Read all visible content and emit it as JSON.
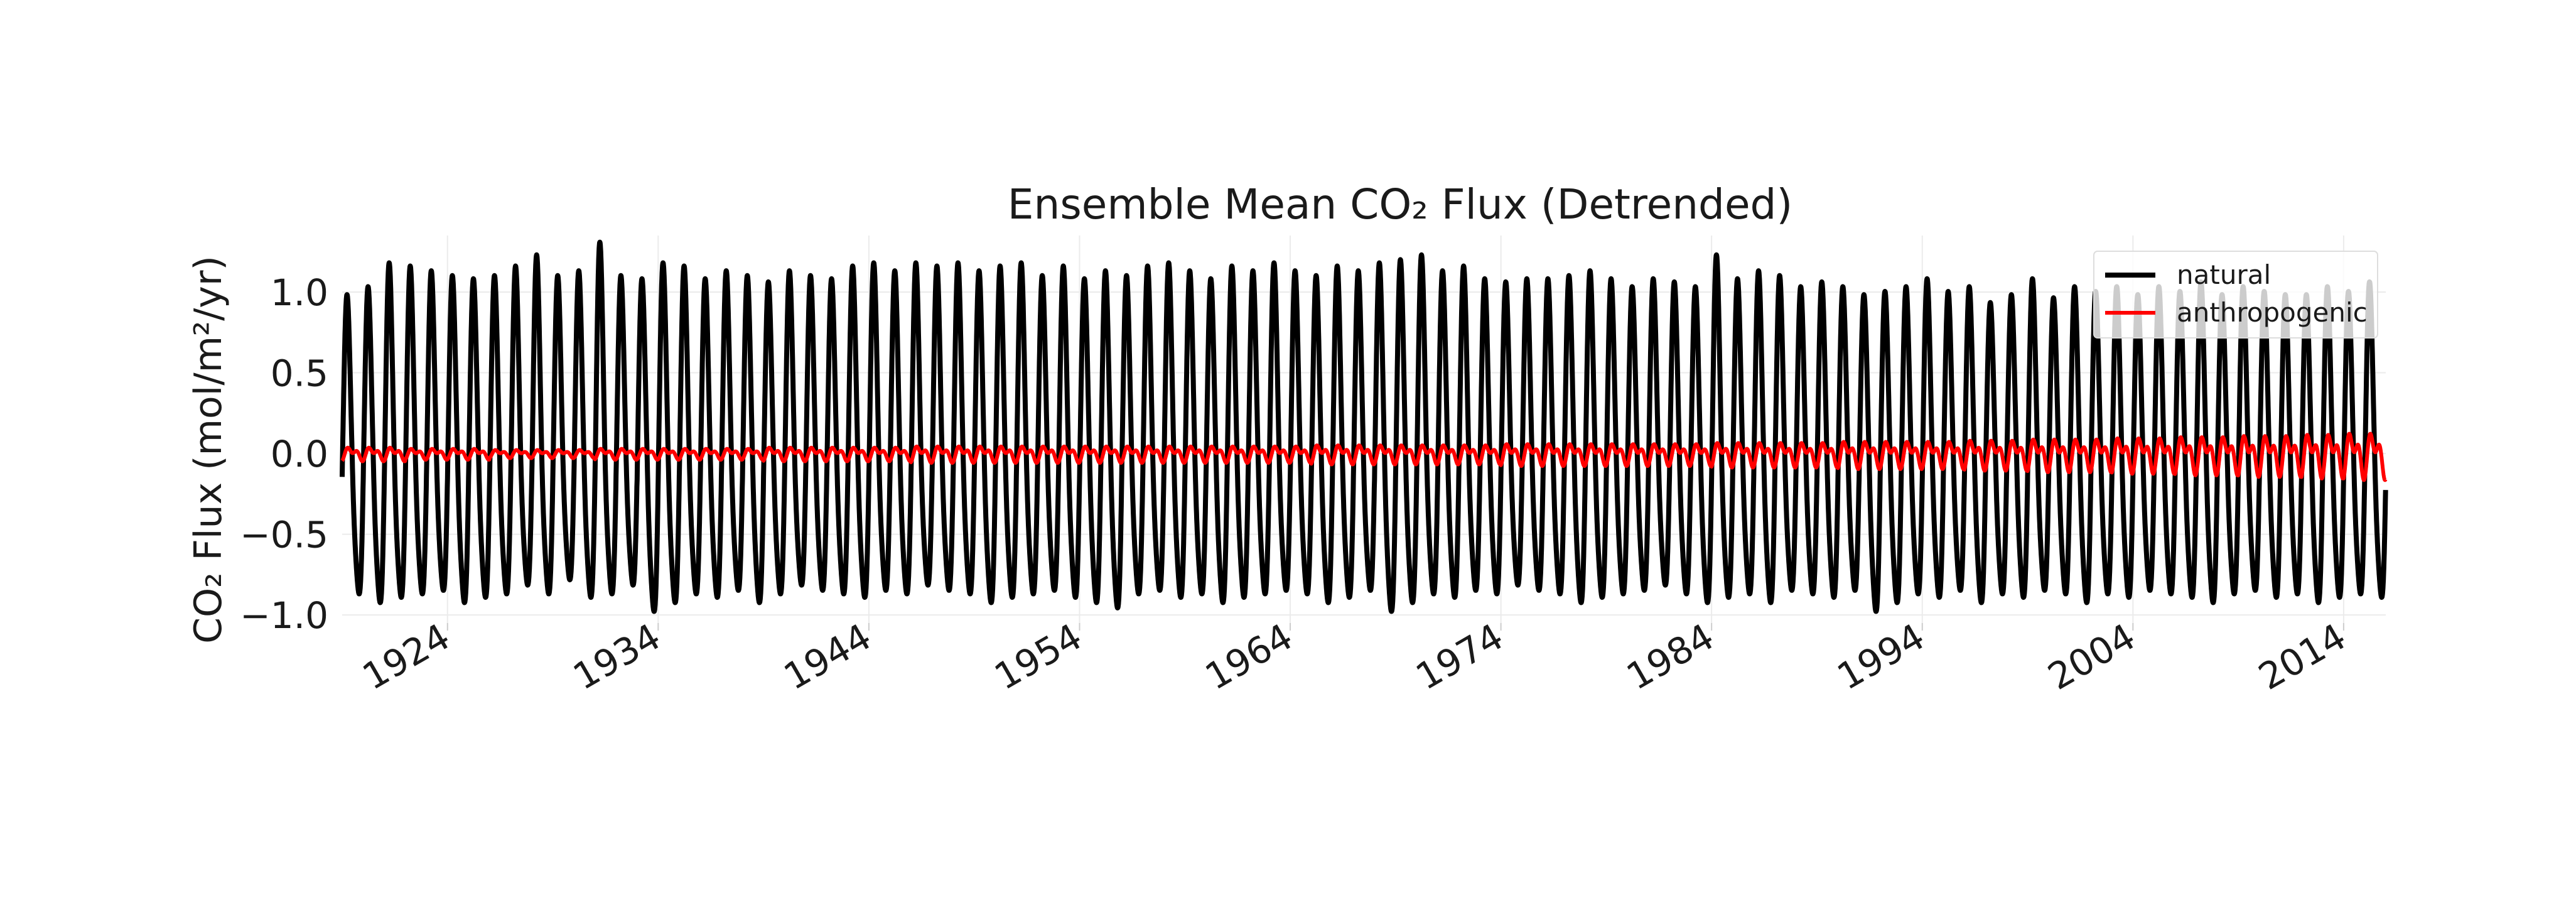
{
  "chart_data": {
    "type": "line",
    "title": "Ensemble Mean CO₂ Flux (Detrended)",
    "ylabel": "CO₂ Flux (mol/m²/yr)",
    "xlabel": "",
    "x_start": "1919-01",
    "x_end": "2015-12",
    "xlim": [
      "1919-01",
      "2015-12"
    ],
    "ylim": [
      -1.05,
      1.35
    ],
    "grid": true,
    "legend_position": "top-right",
    "x_ticks": [
      "1924",
      "1934",
      "1944",
      "1954",
      "1964",
      "1974",
      "1984",
      "1994",
      "2004",
      "2014"
    ],
    "y_ticks": [
      "1.0",
      "0.5",
      "0.0",
      "−0.5",
      "−1.0"
    ],
    "y_tick_values": [
      1.0,
      0.5,
      0.0,
      -0.5,
      -1.0
    ],
    "series": [
      {
        "name": "natural",
        "color": "#000000",
        "representation": "monthly seasonal cycle; yearly peak and trough values",
        "annual_max": [
          1.0,
          1.05,
          1.2,
          1.18,
          1.15,
          1.12,
          1.1,
          1.12,
          1.18,
          1.25,
          1.12,
          1.15,
          1.33,
          1.12,
          1.1,
          1.2,
          1.18,
          1.1,
          1.15,
          1.12,
          1.08,
          1.15,
          1.12,
          1.1,
          1.18,
          1.2,
          1.15,
          1.2,
          1.18,
          1.2,
          1.15,
          1.18,
          1.2,
          1.12,
          1.18,
          1.1,
          1.15,
          1.12,
          1.18,
          1.2,
          1.15,
          1.1,
          1.18,
          1.15,
          1.2,
          1.15,
          1.12,
          1.18,
          1.15,
          1.2,
          1.22,
          1.25,
          1.15,
          1.18,
          1.1,
          1.08,
          1.1,
          1.1,
          1.12,
          1.15,
          1.1,
          1.05,
          1.1,
          1.08,
          1.05,
          1.25,
          1.1,
          1.15,
          1.12,
          1.05,
          1.08,
          1.05,
          1.0,
          1.02,
          1.05,
          1.1,
          1.02,
          1.05,
          0.95,
          1.0,
          1.1,
          0.98,
          1.05,
          1.02,
          1.05,
          1.0,
          1.05,
          1.02,
          1.08,
          1.0,
          1.05,
          1.02,
          1.0,
          1.0,
          1.05,
          1.02,
          1.08
        ],
        "annual_min": [
          -0.8,
          -0.85,
          -0.82,
          -0.8,
          -0.78,
          -0.85,
          -0.82,
          -0.8,
          -0.75,
          -0.8,
          -0.72,
          -0.82,
          -0.8,
          -0.75,
          -0.9,
          -0.85,
          -0.8,
          -0.82,
          -0.78,
          -0.85,
          -0.8,
          -0.75,
          -0.78,
          -0.8,
          -0.82,
          -0.78,
          -0.8,
          -0.75,
          -0.78,
          -0.8,
          -0.85,
          -0.82,
          -0.8,
          -0.78,
          -0.82,
          -0.85,
          -0.88,
          -0.8,
          -0.78,
          -0.82,
          -0.8,
          -0.85,
          -0.82,
          -0.8,
          -0.78,
          -0.8,
          -0.85,
          -0.82,
          -0.78,
          -0.9,
          -0.85,
          -0.8,
          -0.82,
          -0.78,
          -0.8,
          -0.75,
          -0.78,
          -0.8,
          -0.85,
          -0.82,
          -0.8,
          -0.78,
          -0.75,
          -0.8,
          -0.85,
          -0.82,
          -0.8,
          -0.85,
          -0.78,
          -0.8,
          -0.82,
          -0.78,
          -0.9,
          -0.85,
          -0.8,
          -0.82,
          -0.78,
          -0.85,
          -0.8,
          -0.82,
          -0.78,
          -0.8,
          -0.85,
          -0.8,
          -0.82,
          -0.78,
          -0.8,
          -0.82,
          -0.85,
          -0.8,
          -0.78,
          -0.82,
          -0.8,
          -0.85,
          -0.82,
          -0.8,
          -0.82
        ]
      },
      {
        "name": "anthropogenic",
        "color": "#ff0000",
        "representation": "monthly seasonal cycle; yearly amplitude about zero",
        "annual_amplitude": [
          0.05,
          0.05,
          0.05,
          0.04,
          0.04,
          0.04,
          0.04,
          0.03,
          0.03,
          0.03,
          0.03,
          0.03,
          0.04,
          0.04,
          0.04,
          0.04,
          0.04,
          0.04,
          0.04,
          0.04,
          0.05,
          0.05,
          0.05,
          0.05,
          0.05,
          0.05,
          0.05,
          0.06,
          0.06,
          0.06,
          0.06,
          0.06,
          0.06,
          0.06,
          0.06,
          0.06,
          0.06,
          0.06,
          0.06,
          0.06,
          0.06,
          0.06,
          0.06,
          0.06,
          0.06,
          0.06,
          0.07,
          0.07,
          0.07,
          0.07,
          0.07,
          0.07,
          0.07,
          0.07,
          0.07,
          0.08,
          0.08,
          0.08,
          0.08,
          0.08,
          0.08,
          0.08,
          0.08,
          0.08,
          0.08,
          0.09,
          0.09,
          0.09,
          0.09,
          0.09,
          0.09,
          0.1,
          0.1,
          0.1,
          0.1,
          0.1,
          0.1,
          0.11,
          0.11,
          0.11,
          0.12,
          0.12,
          0.12,
          0.12,
          0.13,
          0.13,
          0.13,
          0.14,
          0.14,
          0.14,
          0.15,
          0.15,
          0.15,
          0.16,
          0.16,
          0.17,
          0.17
        ]
      }
    ]
  }
}
